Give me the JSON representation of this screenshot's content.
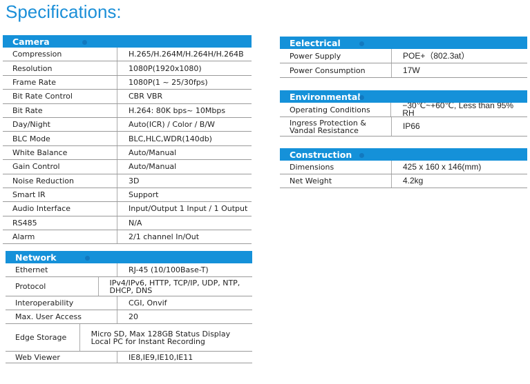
{
  "title": "Specifications:",
  "camera": {
    "header": "Camera",
    "rows": [
      [
        "Compression",
        "H.265/H.264M/H.264H/H.264B"
      ],
      [
        "Resolution",
        "1080P(1920x1080)"
      ],
      [
        "Frame Rate",
        "1080P(1 ~ 25/30fps)"
      ],
      [
        "Bit Rate Control",
        "CBR VBR"
      ],
      [
        "Bit Rate",
        "H.264: 80K bps~ 10Mbps"
      ],
      [
        "Day/Night",
        "Auto(ICR) / Color / B/W"
      ],
      [
        "BLC Mode",
        "BLC,HLC,WDR(140db)"
      ],
      [
        "White Balance",
        "Auto/Manual"
      ],
      [
        "Gain Control",
        "Auto/Manual"
      ],
      [
        "Noise Reduction",
        "3D"
      ],
      [
        "Smart IR",
        "Support"
      ],
      [
        "Audio Interface",
        "Input/Output 1 Input / 1 Output"
      ],
      [
        "RS485",
        "N/A"
      ],
      [
        "Alarm",
        "2/1 channel In/Out"
      ]
    ]
  },
  "network": {
    "header": "Network",
    "rows": [
      [
        "Ethernet",
        "RJ-45 (10/100Base-T)"
      ],
      [
        "Protocol",
        "IPv4/IPv6, HTTP, TCP/IP, UDP, NTP, DHCP, DNS"
      ],
      [
        "Interoperability",
        "CGI, Onvif"
      ],
      [
        "Max. User Access",
        "20"
      ],
      [
        "Edge Storage",
        "Micro SD, Max 128GB Status Display Local PC for Instant Recording"
      ],
      [
        "Web Viewer",
        "IE8,IE9,IE10,IE11"
      ]
    ]
  },
  "electrical": {
    "header": "Eelectrical",
    "rows": [
      [
        "Power Supply",
        "POE+（802.3at）"
      ],
      [
        "Power Consumption",
        "17W"
      ]
    ]
  },
  "environmental": {
    "header": "Environmental",
    "rows": [
      [
        "Operating Conditions",
        "−30℃~+60℃, Less than 95% RH"
      ],
      [
        "Ingress Protection & Vandal Resistance",
        "IP66"
      ]
    ]
  },
  "construction": {
    "header": "Construction",
    "rows": [
      [
        "Dimensions",
        "425 x 160 x 146(mm)"
      ],
      [
        "Net Weight",
        "4.2kg"
      ]
    ]
  }
}
